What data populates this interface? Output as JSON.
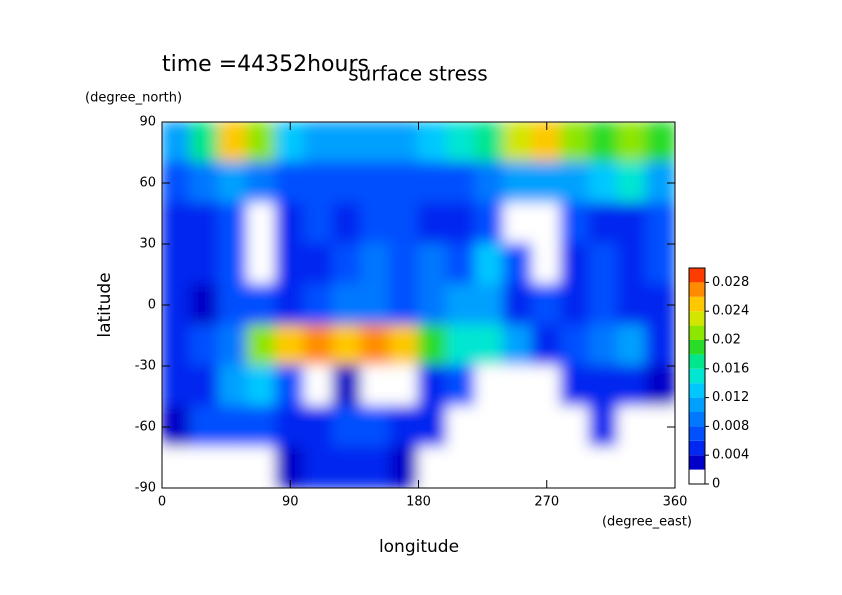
{
  "chart_data": {
    "type": "heatmap",
    "title": "surface stress",
    "subtitle": "time =44352hours",
    "y_label": "latitude",
    "y_unit": "(degree_north)",
    "x_label": "longitude",
    "x_unit": "(degree_east)",
    "x": [
      10,
      30,
      50,
      70,
      90,
      110,
      130,
      150,
      170,
      190,
      210,
      230,
      250,
      270,
      290,
      310,
      330,
      350
    ],
    "y": [
      80,
      60,
      40,
      20,
      0,
      -20,
      -40,
      -60,
      -80
    ],
    "z": [
      [
        0.01,
        0.016,
        0.024,
        0.02,
        0.012,
        0.01,
        0.01,
        0.01,
        0.01,
        0.012,
        0.014,
        0.016,
        0.022,
        0.024,
        0.02,
        0.018,
        0.02,
        0.018
      ],
      [
        0.006,
        0.008,
        0.01,
        0.008,
        0.006,
        0.006,
        0.006,
        0.006,
        0.006,
        0.006,
        0.006,
        0.008,
        0.01,
        0.01,
        0.01,
        0.012,
        0.014,
        0.01
      ],
      [
        0.004,
        0.004,
        0.006,
        0,
        0.004,
        0.006,
        0.004,
        0.006,
        0.006,
        0.004,
        0.004,
        0.006,
        0,
        0,
        0.006,
        0.004,
        0.004,
        0.006
      ],
      [
        0.004,
        0.004,
        0.006,
        0,
        0.004,
        0.004,
        0.006,
        0.008,
        0.006,
        0.008,
        0.006,
        0.012,
        0.006,
        0,
        0.004,
        0.006,
        0.004,
        0.006
      ],
      [
        0.004,
        0.002,
        0.006,
        0.006,
        0.004,
        0.006,
        0.008,
        0.008,
        0.006,
        0.008,
        0.01,
        0.01,
        0.004,
        0.006,
        0.004,
        0.006,
        0.004,
        0.004
      ],
      [
        0.004,
        0.006,
        0.008,
        0.02,
        0.024,
        0.026,
        0.024,
        0.026,
        0.024,
        0.018,
        0.014,
        0.014,
        0.01,
        0.004,
        0.006,
        0.008,
        0.01,
        0.004
      ],
      [
        0.004,
        0.004,
        0.01,
        0.012,
        0.006,
        0,
        0.002,
        0,
        0,
        0.004,
        0.006,
        0,
        0,
        0,
        0.004,
        0.004,
        0.004,
        0.002
      ],
      [
        0.002,
        0.006,
        0.006,
        0.006,
        0.004,
        0.004,
        0.006,
        0.006,
        0.004,
        0.004,
        0,
        0,
        0,
        0,
        0,
        0.004,
        0,
        0
      ],
      [
        0,
        0,
        0,
        0,
        0.002,
        0.004,
        0.004,
        0.004,
        0.002,
        0,
        0,
        0,
        0,
        0,
        0,
        0,
        0,
        0
      ]
    ],
    "xlim": [
      0,
      360
    ],
    "xticks": [
      0,
      90,
      180,
      270,
      360
    ],
    "ylim": [
      -90,
      90
    ],
    "yticks": [
      -90,
      -60,
      -30,
      0,
      30,
      60,
      90
    ],
    "colorbar": {
      "lim": [
        0,
        0.03
      ],
      "ticks": [
        0,
        0.004,
        0.008,
        0.012,
        0.016,
        0.02,
        0.024,
        0.028
      ],
      "colors": [
        "#ffffff",
        "#0000c8",
        "#0028f0",
        "#0050ff",
        "#0078ff",
        "#00a0ff",
        "#00c8ff",
        "#00e6d2",
        "#00e68c",
        "#28dc28",
        "#8ce600",
        "#d2e600",
        "#ffc800",
        "#ff8c00",
        "#ff3c00"
      ]
    }
  }
}
